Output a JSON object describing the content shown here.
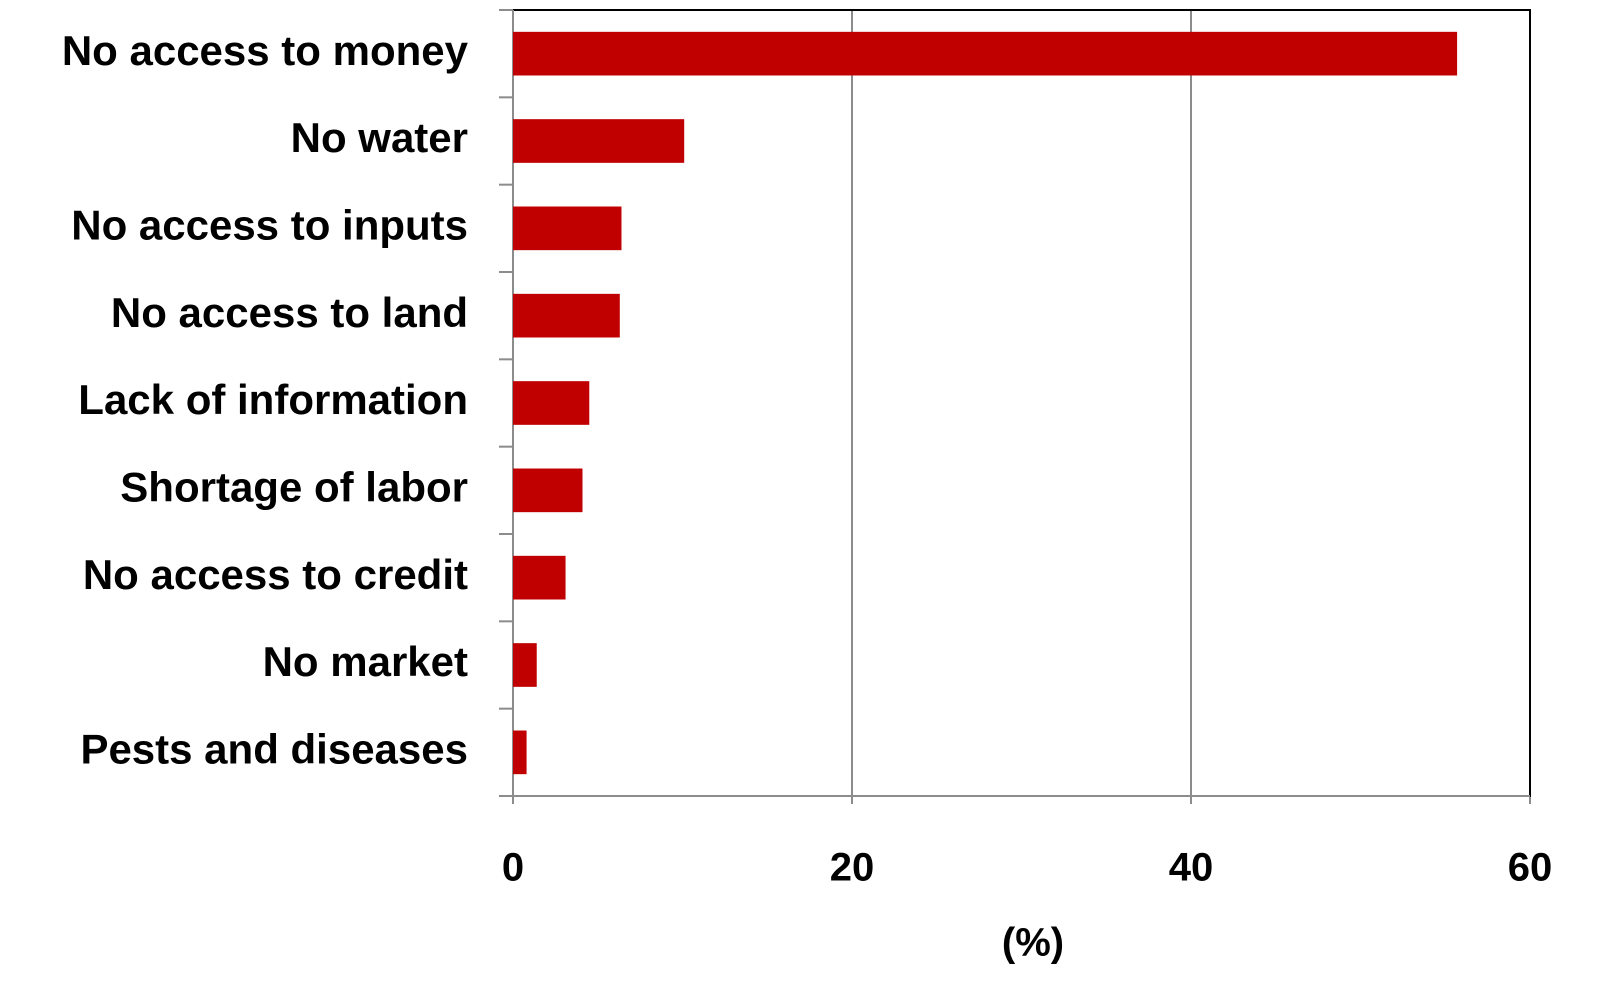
{
  "chart_data": {
    "type": "bar",
    "orientation": "horizontal",
    "categories": [
      "No access to money",
      "No water",
      "No access to inputs",
      "No access to land",
      "Lack of information",
      "Shortage of labor",
      "No access to credit",
      "No market",
      "Pests and diseases"
    ],
    "values": [
      55.7,
      10.1,
      6.4,
      6.3,
      4.5,
      4.1,
      3.1,
      1.4,
      0.8
    ],
    "color": "#c00000",
    "x_label": "(%)",
    "xlim": [
      0,
      60
    ],
    "xticks": [
      0,
      20,
      40,
      60
    ],
    "grid": true
  }
}
